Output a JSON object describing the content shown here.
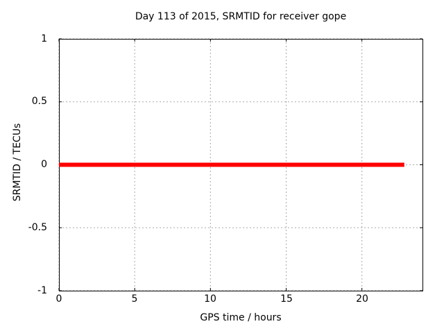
{
  "chart_data": {
    "type": "line",
    "title": "Day 113 of 2015, SRMTID for receiver gope",
    "xlabel": "GPS time / hours",
    "ylabel": "SRMTID / TECUs",
    "xlim": [
      0,
      24
    ],
    "ylim": [
      -1,
      1
    ],
    "xticks": {
      "values": [
        0,
        5,
        10,
        15,
        20
      ],
      "labels": [
        "0",
        "5",
        "10",
        "15",
        "20"
      ]
    },
    "yticks": {
      "values": [
        -1,
        -0.5,
        0,
        0.5,
        1
      ],
      "labels": [
        "-1",
        "-0.5",
        "0",
        "0.5",
        "1"
      ]
    },
    "grid": true,
    "grid_style": "dashed",
    "legend": "none",
    "series": [
      {
        "name": "SRMTID",
        "color": "#ff0000",
        "linewidth": 6,
        "x": [
          0,
          22.8
        ],
        "y": [
          0,
          0
        ]
      }
    ]
  },
  "colors": {
    "background": "#ffffff",
    "border": "#000000",
    "grid": "#a8a8a8",
    "text": "#000000",
    "series_red": "#ff0000"
  }
}
